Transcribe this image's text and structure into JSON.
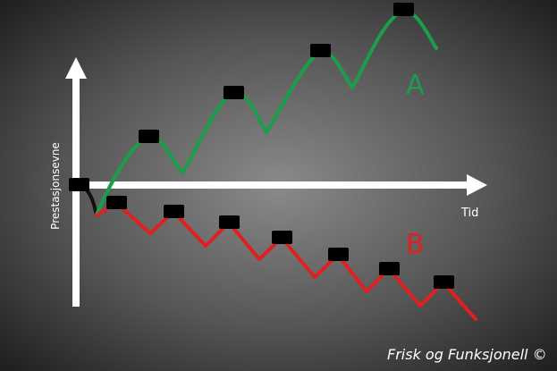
{
  "axes": {
    "ylabel": "Prestasjonsevne",
    "xlabel": "Tid"
  },
  "series": {
    "a": {
      "label": "A",
      "color": "#1a9e4a"
    },
    "b": {
      "label": "B",
      "color": "#e02020"
    }
  },
  "colors": {
    "axis": "#ffffff",
    "marker": "#000000",
    "initial_dip": "#111111"
  },
  "credit": "Frisk og Funksjonell ©"
}
